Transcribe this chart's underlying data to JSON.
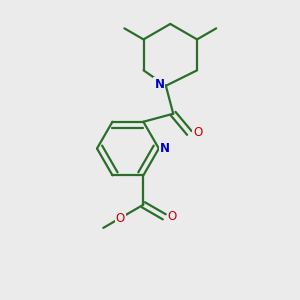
{
  "background_color": "#ebebeb",
  "bond_color": "#2a6e2a",
  "nitrogen_color": "#0000cc",
  "oxygen_color": "#cc0000",
  "line_width": 1.6,
  "figsize": [
    3.0,
    3.0
  ],
  "dpi": 100,
  "xlim": [
    0,
    10
  ],
  "ylim": [
    0,
    10
  ]
}
